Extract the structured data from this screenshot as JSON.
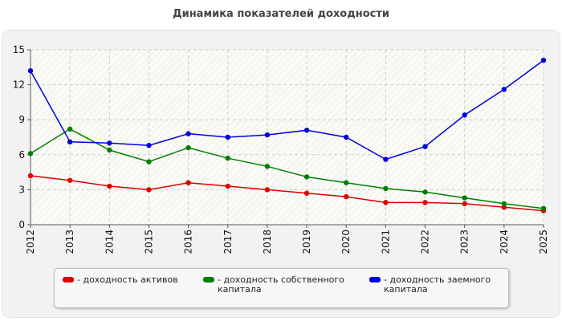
{
  "chart_data": {
    "type": "line",
    "title": "Динамика показателей доходности",
    "xlabel": "",
    "ylabel": "",
    "ylim": [
      0,
      15
    ],
    "yticks": [
      0,
      3,
      6,
      9,
      12,
      15
    ],
    "grid": true,
    "legend_position": "bottom",
    "categories": [
      "2012",
      "2013",
      "2014",
      "2015",
      "2016",
      "2017",
      "2018",
      "2019",
      "2020",
      "2021",
      "2022",
      "2023",
      "2024",
      "2025"
    ],
    "series": [
      {
        "name": "- доходность активов",
        "color": "#e00000",
        "values": [
          4.2,
          3.8,
          3.3,
          3.0,
          3.6,
          3.3,
          3.0,
          2.7,
          2.4,
          1.9,
          1.9,
          1.8,
          1.5,
          1.2
        ]
      },
      {
        "name": "- доходность собственного капитала",
        "color": "#008000",
        "values": [
          6.1,
          8.2,
          6.4,
          5.4,
          6.6,
          5.7,
          5.0,
          4.1,
          3.6,
          3.1,
          2.8,
          2.3,
          1.8,
          1.4
        ]
      },
      {
        "name": "- доходность заемного капитала",
        "color": "#0000e0",
        "values": [
          13.2,
          7.1,
          7.0,
          6.8,
          7.8,
          7.5,
          7.7,
          8.1,
          7.5,
          5.6,
          6.7,
          9.4,
          11.6,
          14.1
        ]
      }
    ]
  }
}
